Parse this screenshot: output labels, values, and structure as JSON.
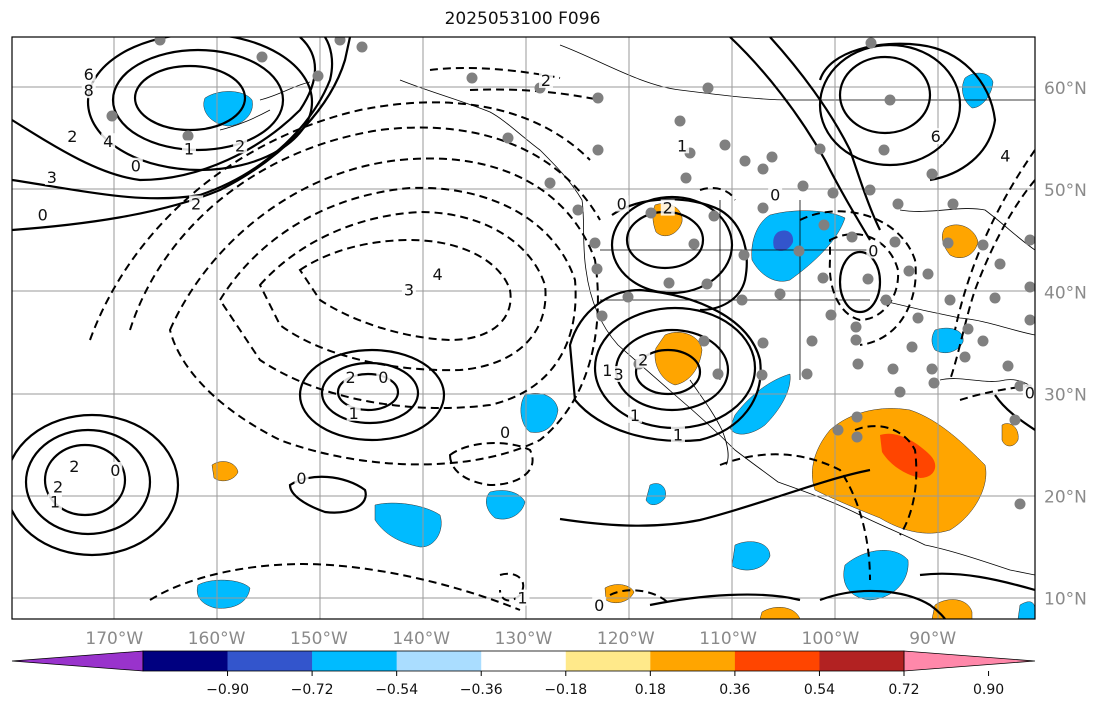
{
  "title": "2025053100 F096",
  "map": {
    "lon_range": [
      -180,
      -80
    ],
    "lat_range": [
      8,
      65
    ],
    "lon_ticks": [
      -170,
      -160,
      -150,
      -140,
      -130,
      -120,
      -110,
      -100,
      -90
    ],
    "lon_labels": [
      "170°W",
      "160°W",
      "150°W",
      "140°W",
      "130°W",
      "120°W",
      "110°W",
      "100°W",
      "90°W"
    ],
    "lat_ticks": [
      10,
      20,
      30,
      40,
      50,
      60
    ],
    "lat_labels": [
      "10°N",
      "20°N",
      "30°N",
      "40°N",
      "50°N",
      "60°N"
    ],
    "grid": true
  },
  "colorbar": {
    "orientation": "horizontal",
    "colors": [
      "#9933cc",
      "#000080",
      "#3355cc",
      "#00bbff",
      "#aaddff",
      "#ffffff",
      "#ffe98a",
      "#ffa500",
      "#ff4500",
      "#b22222",
      "#ff88aa"
    ],
    "tick_values": [
      -0.9,
      -0.72,
      -0.54,
      -0.36,
      -0.18,
      0.18,
      0.36,
      0.54,
      0.72,
      0.9
    ],
    "tick_labels": [
      "−0.90",
      "−0.72",
      "−0.54",
      "−0.36",
      "−0.18",
      "0.18",
      "0.36",
      "0.54",
      "0.72",
      "0.90"
    ]
  },
  "contour_labels": [
    {
      "text": "6",
      "lon": -172.5,
      "lat": 61.1
    },
    {
      "text": "8",
      "lon": -172.5,
      "lat": 59.5
    },
    {
      "text": "4",
      "lon": -170.6,
      "lat": 54.5
    },
    {
      "text": "2",
      "lon": -174.1,
      "lat": 55.0
    },
    {
      "text": "0",
      "lon": -167.9,
      "lat": 52.1
    },
    {
      "text": "3",
      "lon": -176.1,
      "lat": 51.0
    },
    {
      "text": "0",
      "lon": -177.0,
      "lat": 47.3
    },
    {
      "text": "2",
      "lon": -162.0,
      "lat": 48.4
    },
    {
      "text": "2",
      "lon": -157.7,
      "lat": 54.1
    },
    {
      "text": "1",
      "lon": -162.7,
      "lat": 53.8
    },
    {
      "text": "3",
      "lon": -141.2,
      "lat": 40.0
    },
    {
      "text": "4",
      "lon": -138.4,
      "lat": 41.5
    },
    {
      "text": "2",
      "lon": -146.9,
      "lat": 31.4
    },
    {
      "text": "1",
      "lon": -146.6,
      "lat": 27.9
    },
    {
      "text": "0",
      "lon": -143.7,
      "lat": 31.4
    },
    {
      "text": "2",
      "lon": -173.9,
      "lat": 22.7
    },
    {
      "text": "2",
      "lon": -175.5,
      "lat": 20.7
    },
    {
      "text": "1",
      "lon": -175.8,
      "lat": 19.2
    },
    {
      "text": "0",
      "lon": -169.9,
      "lat": 22.3
    },
    {
      "text": "0",
      "lon": -151.7,
      "lat": 21.5
    },
    {
      "text": "0",
      "lon": -131.8,
      "lat": 26.0
    },
    {
      "text": "1",
      "lon": -130.1,
      "lat": 9.8
    },
    {
      "text": "0",
      "lon": -122.6,
      "lat": 9.1
    },
    {
      "text": "1",
      "lon": -121.8,
      "lat": 32.1
    },
    {
      "text": "3",
      "lon": -120.7,
      "lat": 31.7
    },
    {
      "text": "2",
      "lon": -118.3,
      "lat": 33.1
    },
    {
      "text": "1",
      "lon": -119.1,
      "lat": 27.7
    },
    {
      "text": "1",
      "lon": -114.9,
      "lat": 25.8
    },
    {
      "text": "0",
      "lon": -120.4,
      "lat": 48.4
    },
    {
      "text": "1",
      "lon": -114.5,
      "lat": 54.1
    },
    {
      "text": "0",
      "lon": -105.4,
      "lat": 49.3
    },
    {
      "text": "2",
      "lon": -115.9,
      "lat": 48.0
    },
    {
      "text": "2",
      "lon": -127.8,
      "lat": 60.5
    },
    {
      "text": "6",
      "lon": -89.7,
      "lat": 55.0
    },
    {
      "text": "4",
      "lon": -82.9,
      "lat": 53.1
    },
    {
      "text": "0",
      "lon": -95.8,
      "lat": 43.8
    },
    {
      "text": "0",
      "lon": -80.5,
      "lat": 29.9
    }
  ]
}
